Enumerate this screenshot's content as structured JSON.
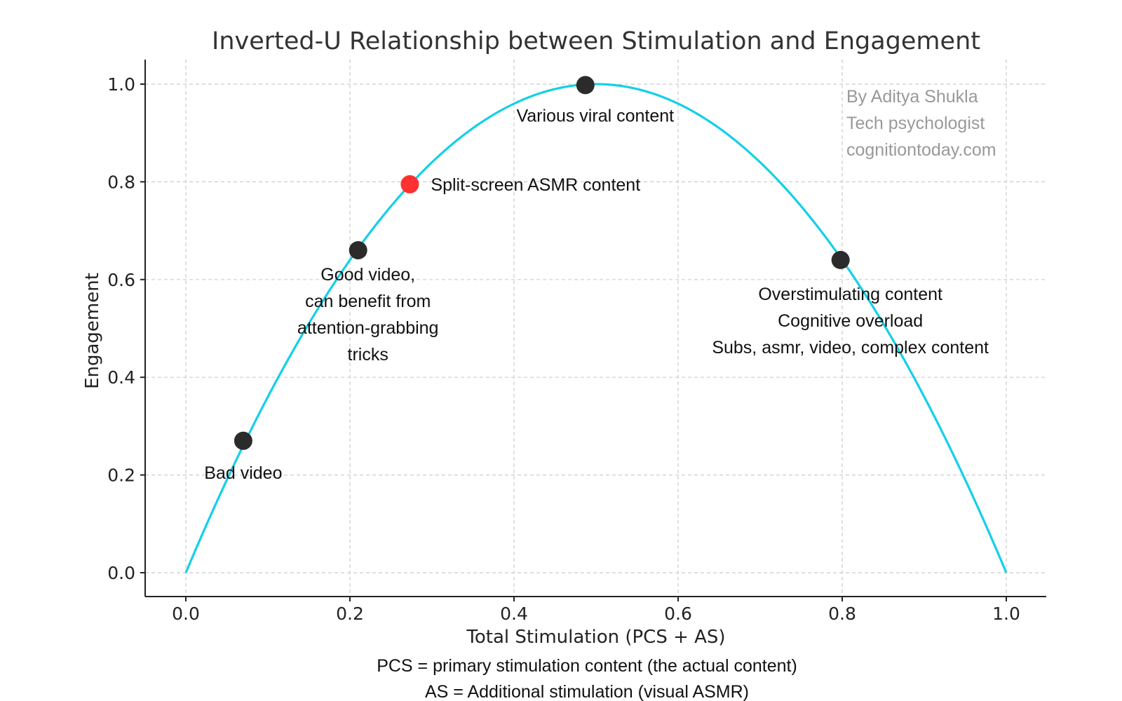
{
  "chart_data": {
    "type": "line",
    "title": "Inverted-U Relationship between Stimulation and Engagement",
    "xlabel": "Total Stimulation (PCS + AS)",
    "ylabel": "Engagement",
    "xlim": [
      -0.05,
      1.05
    ],
    "ylim": [
      -0.05,
      1.05
    ],
    "x_ticks": [
      "0.0",
      "0.2",
      "0.4",
      "0.6",
      "0.8",
      "1.0"
    ],
    "y_ticks": [
      "0.0",
      "0.2",
      "0.4",
      "0.6",
      "0.8",
      "1.0"
    ],
    "grid": true,
    "curve": {
      "formula": "y = 4x(1-x)",
      "x_range": [
        0,
        1
      ],
      "color": "#13d0e8"
    },
    "points": [
      {
        "x": 0.07,
        "y": 0.27,
        "color": "#2b2b2b",
        "label": [
          "Bad video"
        ]
      },
      {
        "x": 0.21,
        "y": 0.66,
        "color": "#2b2b2b",
        "label": [
          "Good video,",
          "can benefit from",
          "attention-grabbing",
          "tricks"
        ]
      },
      {
        "x": 0.273,
        "y": 0.795,
        "color": "#ff3030",
        "label": [
          "Split-screen ASMR content"
        ]
      },
      {
        "x": 0.487,
        "y": 0.998,
        "color": "#2b2b2b",
        "label": [
          "Various viral content"
        ]
      },
      {
        "x": 0.798,
        "y": 0.64,
        "color": "#2b2b2b",
        "label": [
          "Overstimulating content",
          "Cognitive overload",
          "Subs, asmr, video, complex content"
        ]
      }
    ],
    "credit": [
      "By Aditya Shukla",
      "Tech psychologist",
      "cognitiontoday.com"
    ],
    "caption": [
      "PCS = primary stimulation content (the actual content)",
      "AS = Additional stimulation (visual ASMR)"
    ]
  }
}
